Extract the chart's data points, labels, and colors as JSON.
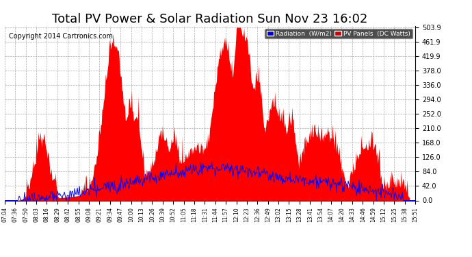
{
  "title": "Total PV Power & Solar Radiation Sun Nov 23 16:02",
  "copyright": "Copyright 2014 Cartronics.com",
  "yticks": [
    0.0,
    42.0,
    84.0,
    126.0,
    168.0,
    210.0,
    252.0,
    294.0,
    336.0,
    378.0,
    419.9,
    461.9,
    503.9
  ],
  "xtick_labels": [
    "07:04",
    "07:36",
    "07:50",
    "08:03",
    "08:16",
    "08:29",
    "08:42",
    "08:55",
    "09:08",
    "09:21",
    "09:34",
    "09:47",
    "10:00",
    "10:13",
    "10:26",
    "10:39",
    "10:52",
    "11:05",
    "11:18",
    "11:31",
    "11:44",
    "11:57",
    "12:10",
    "12:23",
    "12:36",
    "12:49",
    "13:02",
    "13:15",
    "13:28",
    "13:41",
    "13:54",
    "14:07",
    "14:20",
    "14:33",
    "14:46",
    "14:59",
    "15:12",
    "15:25",
    "15:38",
    "15:51"
  ],
  "bg_color": "#ffffff",
  "grid_color": "#aaaaaa",
  "fill_color": "#ff0000",
  "line_color": "#0000ff",
  "title_fontsize": 13,
  "copyright_fontsize": 7,
  "legend_radiation_label": "Radiation  (W/m2)",
  "legend_pv_label": "PV Panels  (DC Watts)",
  "ymax": 503.9,
  "ymin": 0.0
}
